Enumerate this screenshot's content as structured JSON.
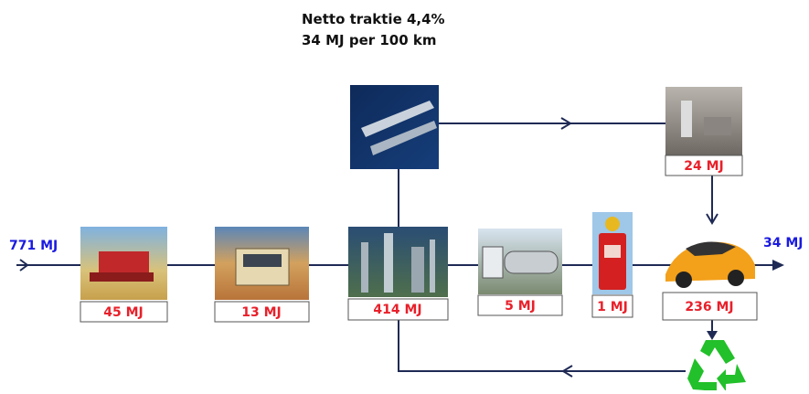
{
  "title": [
    "Netto traktie 4,4%",
    "34 MJ per 100 km"
  ],
  "input": "771 MJ",
  "output": "34 MJ",
  "nodes": [
    {
      "label": "45 MJ"
    },
    {
      "label": "13 MJ"
    },
    {
      "label": "414 MJ"
    },
    {
      "label": "5 MJ"
    },
    {
      "label": "1 MJ"
    },
    {
      "label": "236 MJ"
    },
    {
      "label": "24 MJ"
    }
  ]
}
